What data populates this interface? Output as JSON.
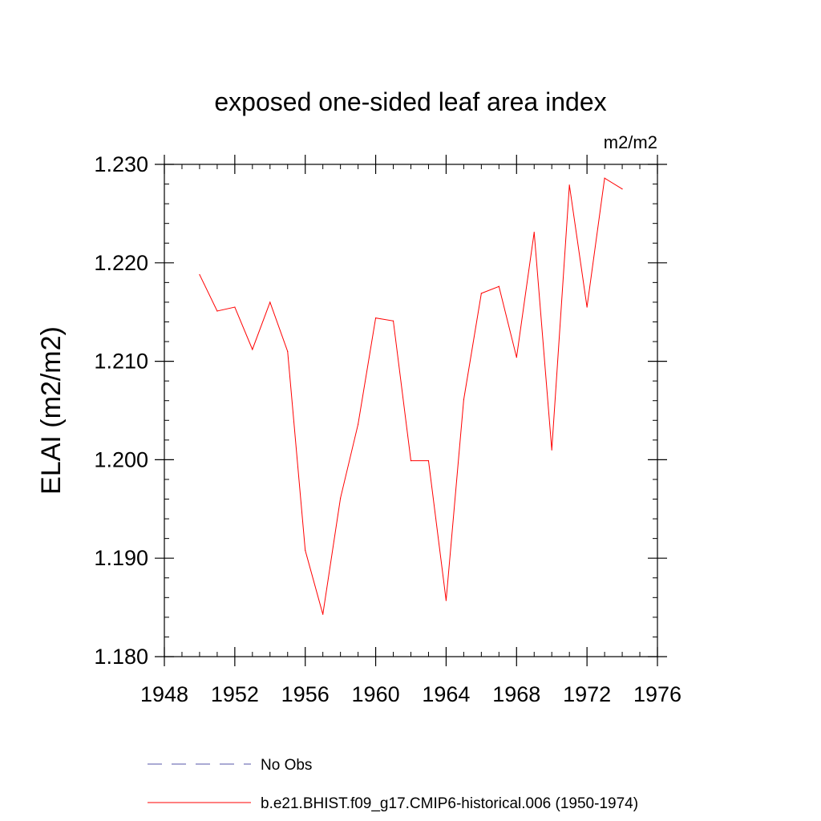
{
  "chart_data": {
    "type": "line",
    "title": "exposed one-sided leaf area index",
    "units_label": "m2/m2",
    "ylabel": "ELAI  (m2/m2)",
    "xlabel": "",
    "xlim": [
      1948,
      1976
    ],
    "ylim": [
      1.18,
      1.23
    ],
    "x_ticks": [
      1948,
      1952,
      1956,
      1960,
      1964,
      1968,
      1972,
      1976
    ],
    "x_tick_labels": [
      "1948",
      "1952",
      "1956",
      "1960",
      "1964",
      "1968",
      "1972",
      "1976"
    ],
    "y_ticks": [
      1.18,
      1.19,
      1.2,
      1.21,
      1.22,
      1.23
    ],
    "y_tick_labels": [
      "1.180",
      "1.190",
      "1.200",
      "1.210",
      "1.220",
      "1.230"
    ],
    "grid": false,
    "legend_position": "bottom",
    "series": [
      {
        "name": "b.e21.BHIST.f09_g17.CMIP6-historical.006 (1950-1974)",
        "color": "#ff0000",
        "style": "solid",
        "x": [
          1950,
          1951,
          1952,
          1953,
          1954,
          1955,
          1956,
          1957,
          1958,
          1959,
          1960,
          1961,
          1962,
          1963,
          1964,
          1965,
          1966,
          1967,
          1968,
          1969,
          1970,
          1971,
          1972,
          1973,
          1974
        ],
        "values": [
          1.2188,
          1.2151,
          1.2155,
          1.2112,
          1.216,
          1.211,
          1.1908,
          1.1843,
          1.1961,
          1.2036,
          1.2144,
          1.2141,
          1.1999,
          1.1999,
          1.1857,
          1.2061,
          1.2169,
          1.2176,
          1.2104,
          1.2231,
          1.201,
          1.2279,
          1.2155,
          1.2286,
          1.2275
        ]
      }
    ],
    "legend": [
      {
        "label": "No Obs",
        "color": "#5555aa",
        "style": "dashed"
      },
      {
        "label": "b.e21.BHIST.f09_g17.CMIP6-historical.006 (1950-1974)",
        "color": "#ff0000",
        "style": "solid"
      }
    ]
  }
}
